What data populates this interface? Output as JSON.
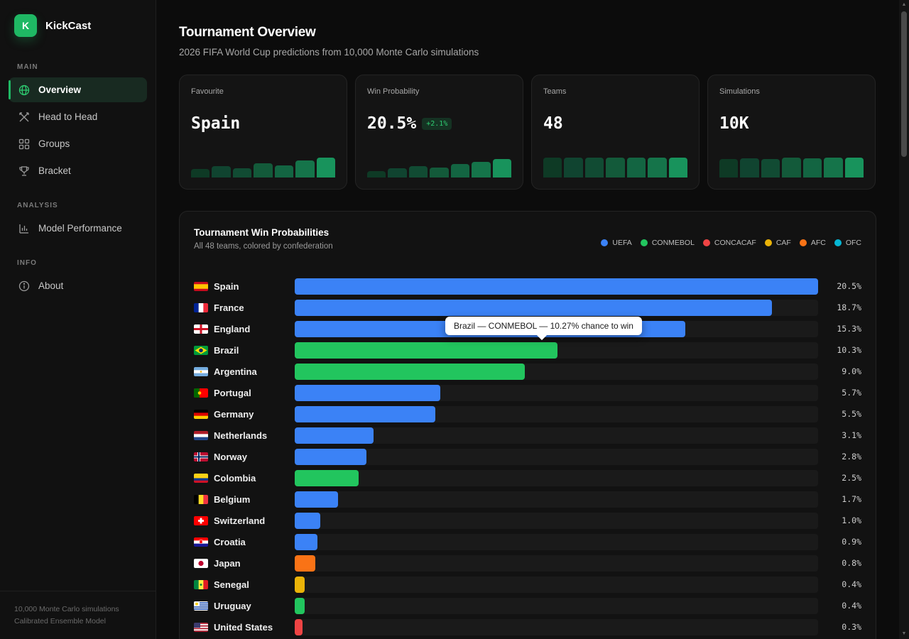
{
  "brand": {
    "logo_letter": "K",
    "name": "KickCast"
  },
  "sidebar": {
    "sections": [
      {
        "title": "MAIN",
        "items": [
          {
            "label": "Overview",
            "icon": "globe-icon",
            "active": true
          },
          {
            "label": "Head to Head",
            "icon": "crossed-swords-icon",
            "active": false
          },
          {
            "label": "Groups",
            "icon": "grid-icon",
            "active": false
          },
          {
            "label": "Bracket",
            "icon": "trophy-icon",
            "active": false
          }
        ]
      },
      {
        "title": "ANALYSIS",
        "items": [
          {
            "label": "Model Performance",
            "icon": "bar-chart-icon",
            "active": false
          }
        ]
      },
      {
        "title": "INFO",
        "items": [
          {
            "label": "About",
            "icon": "info-icon",
            "active": false
          }
        ]
      }
    ],
    "footer": {
      "line1": "10,000 Monte Carlo simulations",
      "line2": "Calibrated Ensemble Model"
    }
  },
  "header": {
    "title": "Tournament Overview",
    "subtitle": "2026 FIFA World Cup predictions from 10,000 Monte Carlo simulations"
  },
  "stats": [
    {
      "label": "Favourite",
      "value": "Spain",
      "delta": ""
    },
    {
      "label": "Win Probability",
      "value": "20.5%",
      "delta": "+2.1%"
    },
    {
      "label": "Teams",
      "value": "48",
      "delta": ""
    },
    {
      "label": "Simulations",
      "value": "10K",
      "delta": ""
    }
  ],
  "colors": {
    "accent": "#1fb864",
    "UEFA": "#3b82f6",
    "CONMEBOL": "#22c55e",
    "CONCACAF": "#ef4444",
    "CAF": "#eab308",
    "AFC": "#f97316",
    "OFC": "#06b6d4"
  },
  "chart_data": {
    "type": "bar",
    "orientation": "horizontal",
    "title": "Tournament Win Probabilities",
    "subtitle": "All 48 teams, colored by confederation",
    "legend": [
      "UEFA",
      "CONMEBOL",
      "CONCACAF",
      "CAF",
      "AFC",
      "OFC"
    ],
    "legend_position": "top-right",
    "unit": "%",
    "xlim": [
      0,
      20.5
    ],
    "categories": [
      "Spain",
      "France",
      "England",
      "Brazil",
      "Argentina",
      "Portugal",
      "Germany",
      "Netherlands",
      "Norway",
      "Colombia",
      "Belgium",
      "Switzerland",
      "Croatia",
      "Japan",
      "Senegal",
      "Uruguay",
      "United States"
    ],
    "confederations": [
      "UEFA",
      "UEFA",
      "UEFA",
      "CONMEBOL",
      "CONMEBOL",
      "UEFA",
      "UEFA",
      "UEFA",
      "UEFA",
      "CONMEBOL",
      "UEFA",
      "UEFA",
      "UEFA",
      "AFC",
      "CAF",
      "CONMEBOL",
      "CONCACAF"
    ],
    "values": [
      20.5,
      18.7,
      15.3,
      10.3,
      9.0,
      5.7,
      5.5,
      3.1,
      2.8,
      2.5,
      1.7,
      1.0,
      0.9,
      0.8,
      0.4,
      0.4,
      0.3
    ],
    "labels": [
      "20.5%",
      "18.7%",
      "15.3%",
      "10.3%",
      "9.0%",
      "5.7%",
      "5.5%",
      "3.1%",
      "2.8%",
      "2.5%",
      "1.7%",
      "1.0%",
      "0.9%",
      "0.8%",
      "0.4%",
      "0.4%",
      "0.3%"
    ],
    "tooltip": "Brazil — CONMEBOL — 10.27% chance to win"
  }
}
